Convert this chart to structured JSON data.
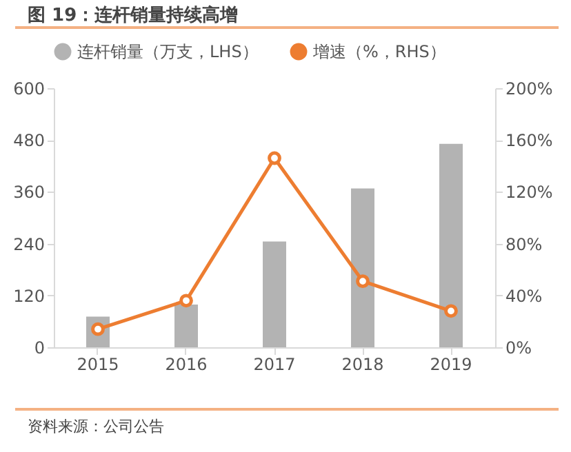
{
  "chart_data": {
    "type": "bar",
    "title": "图 19：连杆销量持续高增",
    "categories": [
      "2015",
      "2016",
      "2017",
      "2018",
      "2019"
    ],
    "series": [
      {
        "name": "连杆销量（万支，LHS）",
        "color": "#b3b3b3",
        "values": [
          71,
          99,
          245,
          368,
          471
        ]
      },
      {
        "name": "增速（%，RHS）",
        "type": "line",
        "axis": "y2",
        "color": "#ed7d31",
        "values": [
          14,
          36,
          146,
          51,
          28
        ]
      }
    ],
    "ylim": [
      0,
      600
    ],
    "yticks": [
      0,
      120,
      240,
      360,
      480,
      600
    ],
    "y2lim": [
      0,
      200
    ],
    "y2ticks": [
      {
        "value": 0,
        "label": "0%"
      },
      {
        "value": 40,
        "label": "40%"
      },
      {
        "value": 80,
        "label": "80%"
      },
      {
        "value": 120,
        "label": "120%"
      },
      {
        "value": 160,
        "label": "160%"
      },
      {
        "value": 200,
        "label": "200%"
      }
    ],
    "grid": false,
    "legend": "top",
    "marker": "circle",
    "line_style": "solid",
    "annotations": [
      "资料来源：公司公告"
    ]
  }
}
